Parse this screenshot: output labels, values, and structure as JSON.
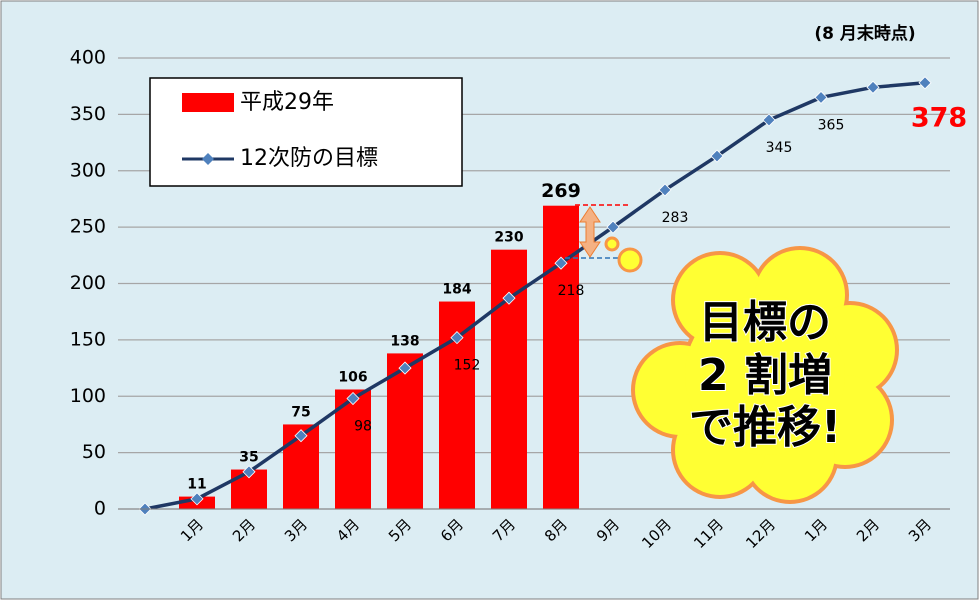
{
  "chart_data": {
    "type": "bar-line",
    "annotations": [
      "(8 月末時点)",
      "目標の",
      "2 割増",
      "で推移!"
    ],
    "categories": [
      null,
      "1月",
      "2月",
      "3月",
      "4月",
      "5月",
      "6月",
      "7月",
      "8月",
      "9月",
      "10月",
      "11月",
      "12月",
      "1月",
      "2月",
      "3月"
    ],
    "series": [
      {
        "name": "平成29年",
        "type": "bar",
        "color": "#ff0000",
        "values": [
          null,
          11,
          35,
          75,
          106,
          138,
          184,
          230,
          269,
          null,
          null,
          null,
          null,
          null,
          null,
          null
        ]
      },
      {
        "name": "12次防の目標",
        "type": "line",
        "color": "#1f3864",
        "marker_color": "#4f81bd",
        "values": [
          0,
          9,
          33,
          65,
          98,
          125,
          152,
          187,
          218,
          250,
          283,
          313,
          345,
          365,
          374,
          378
        ],
        "value_labels": [
          null,
          null,
          null,
          null,
          "98",
          null,
          "152",
          null,
          "218",
          null,
          "283",
          null,
          "345",
          "365",
          null,
          "378"
        ]
      }
    ],
    "ylim": [
      0,
      400
    ],
    "yticks": [
      0,
      50,
      100,
      150,
      200,
      250,
      300,
      350,
      400
    ],
    "grid": true
  }
}
